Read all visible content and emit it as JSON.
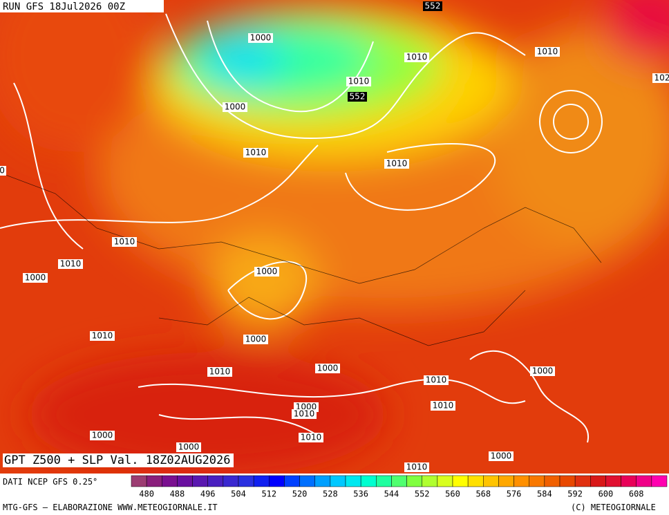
{
  "header": {
    "run": "RUN GFS 18Jul2026 00Z"
  },
  "map": {
    "isobar_labels": [
      "1000",
      "1010",
      "1010",
      "102",
      "1010",
      "552",
      "1000",
      "1010",
      "1010",
      "0",
      "1010",
      "1010",
      "1000",
      "1000",
      "1010",
      "1000",
      "1000",
      "1010",
      "1010",
      "1000",
      "1000",
      "1010",
      "1010",
      "1010",
      "1000",
      "1000",
      "1000",
      "1010",
      "552"
    ]
  },
  "footer": {
    "title": "GPT Z500 + SLP Val. 18Z02AUG2026",
    "source": "DATI NCEP GFS 0.25°",
    "credit": "MTG-GFS — ELABORAZIONE WWW.METEOGIORNALE.IT",
    "copyright": "(C) METEOGIORNALE"
  },
  "colorbar": {
    "ticks": [
      480,
      488,
      496,
      504,
      512,
      520,
      528,
      536,
      544,
      552,
      560,
      568,
      576,
      584,
      592,
      600,
      608
    ],
    "colors": [
      "#9c3d72",
      "#8a1f7c",
      "#7a1090",
      "#6a10a0",
      "#5a18b0",
      "#4a20c0",
      "#3a28d0",
      "#2a30e0",
      "#1020f0",
      "#0000ff",
      "#0040ff",
      "#0070ff",
      "#00a0ff",
      "#00c8ff",
      "#00e8f0",
      "#00ffd0",
      "#20ffa0",
      "#50ff70",
      "#80ff40",
      "#b0ff30",
      "#d8ff20",
      "#ffff00",
      "#ffe000",
      "#ffc400",
      "#ffa800",
      "#ff9000",
      "#f87800",
      "#f06000",
      "#e84800",
      "#e03010",
      "#d81818",
      "#e01030",
      "#e80058",
      "#f00088",
      "#ff00b0"
    ]
  }
}
